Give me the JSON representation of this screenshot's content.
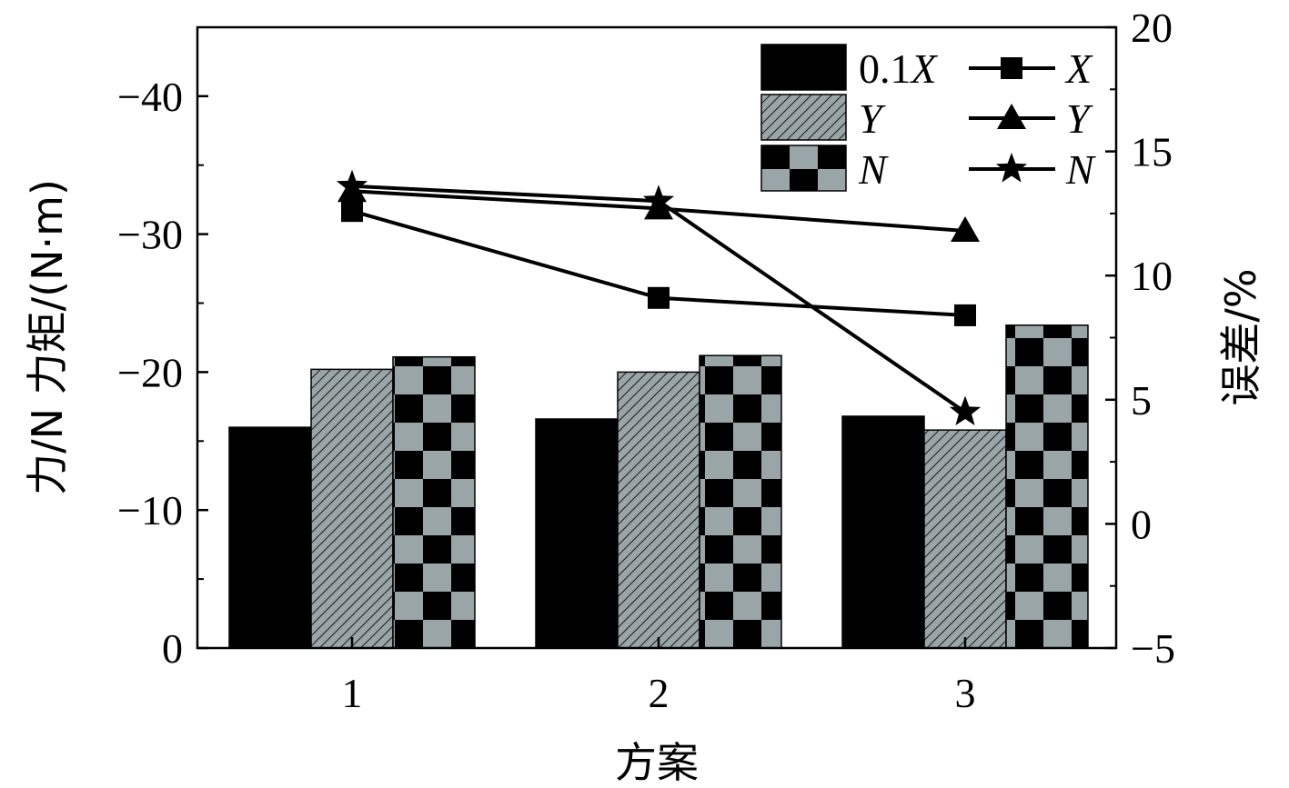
{
  "chart_data": {
    "type": "bar+line",
    "title": "",
    "categories": [
      "1",
      "2",
      "3"
    ],
    "xlabel": "方案",
    "ylabel_left": "力/N 力矩/(N·m)",
    "ylabel_right": "误差/%",
    "left_axis": {
      "ylim": [
        0,
        -45
      ],
      "ticks": [
        "0",
        "−10",
        "−20",
        "−30",
        "−40"
      ],
      "tick_values": [
        0,
        -10,
        -20,
        -30,
        -40
      ]
    },
    "right_axis": {
      "ylim": [
        -5,
        20
      ],
      "ticks": [
        "−5",
        "0",
        "5",
        "10",
        "15",
        "20"
      ],
      "tick_values": [
        -5,
        0,
        5,
        10,
        15,
        20
      ]
    },
    "bar_series": [
      {
        "name": "0.1X",
        "legend_prefix": "0.1",
        "legend_var": "X",
        "pattern": "solid-black",
        "values": [
          -16.0,
          -16.6,
          -16.8
        ]
      },
      {
        "name": "Y",
        "legend_prefix": "",
        "legend_var": "Y",
        "pattern": "hatch-gray",
        "values": [
          -20.2,
          -20.0,
          -15.8
        ]
      },
      {
        "name": "N",
        "legend_prefix": "",
        "legend_var": "N",
        "pattern": "checker",
        "values": [
          -21.1,
          -21.2,
          -23.4
        ]
      }
    ],
    "line_series": [
      {
        "name": "X",
        "legend_var": "X",
        "marker": "square",
        "values": [
          12.6,
          9.1,
          8.4
        ]
      },
      {
        "name": "Y",
        "legend_var": "Y",
        "marker": "triangle",
        "values": [
          13.4,
          12.7,
          11.8
        ]
      },
      {
        "name": "N",
        "legend_var": "N",
        "marker": "star",
        "values": [
          13.6,
          13.0,
          4.5
        ]
      }
    ],
    "grid": false,
    "legend_position": "top-right",
    "colors": {
      "bar_black": "#000000",
      "bar_gray": "#9aa5a8",
      "line": "#000000"
    }
  }
}
